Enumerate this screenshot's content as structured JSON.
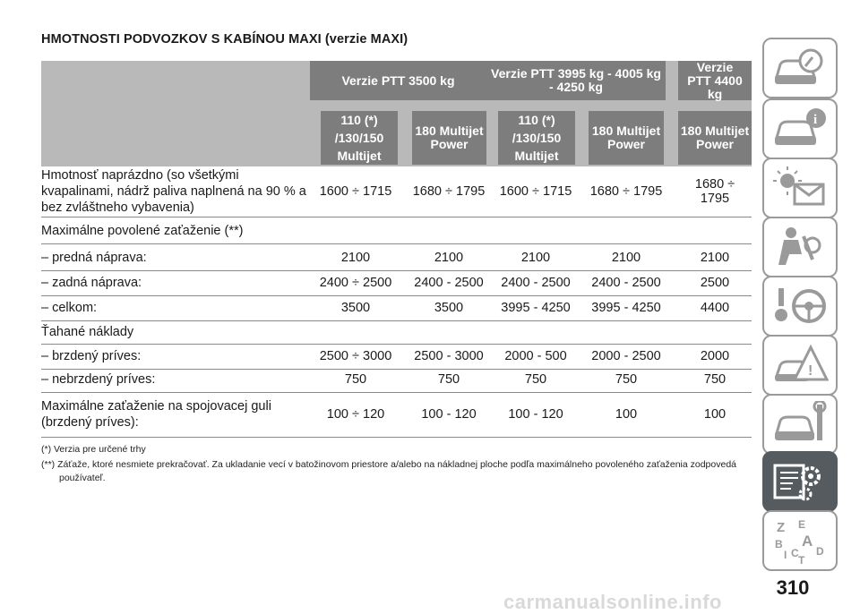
{
  "title": "HMOTNOSTI PODVOZKOV S KABÍNOU MAXI (verzie MAXI)",
  "header": {
    "groups": [
      "Verzie PTT 3500 kg",
      "Verzie PTT 3995 kg - 4005 kg - 4250 kg",
      "Verzie PTT 4400 kg"
    ],
    "engines": [
      "110 (*) /130/150 Multijet",
      "180 Multijet Power",
      "110 (*) /130/150 Multijet",
      "180 Multijet Power",
      "180 Multijet Power"
    ]
  },
  "rows": [
    {
      "label": "Hmotnosť naprázdno (so všetkými kvapalinami, nádrž paliva naplnená na 90 % a bez zvláštneho vybavenia)",
      "values": [
        "1600 ÷ 1715",
        "1680 ÷ 1795",
        "1600 ÷ 1715",
        "1680 ÷ 1795",
        "1680 ÷ 1795"
      ]
    },
    {
      "label": "Maximálne povolené zaťaženie (**)",
      "values": [
        "",
        "",
        "",
        "",
        ""
      ]
    },
    {
      "label": "– predná náprava:",
      "values": [
        "2100",
        "2100",
        "2100",
        "2100",
        "2100"
      ]
    },
    {
      "label": "– zadná náprava:",
      "values": [
        "2400 ÷ 2500",
        "2400 - 2500",
        "2400 - 2500",
        "2400 - 2500",
        "2500"
      ]
    },
    {
      "label": "– celkom:",
      "values": [
        "3500",
        "3500",
        "3995 - 4250",
        "3995 - 4250",
        "4400"
      ]
    },
    {
      "label": "Ťahané náklady",
      "values": [
        "",
        "",
        "",
        "",
        ""
      ]
    },
    {
      "label": "– brzdený príves:",
      "values": [
        "2500 ÷ 3000",
        "2500 - 3000",
        "2000 - 500",
        "2000 - 2500",
        "2000"
      ]
    },
    {
      "label": "– nebrzdený príves:",
      "values": [
        "750",
        "750",
        "750",
        "750",
        "750"
      ]
    },
    {
      "label": "Maximálne zaťaženie na spojovacej guli (brzdený príves):",
      "values": [
        "100 ÷ 120",
        "100 - 120",
        "100 - 120",
        "100",
        "100"
      ]
    }
  ],
  "footnotes": [
    "(*) Verzia pre určené trhy",
    "(**) Záťaže, ktoré nesmiete prekračovať. Za ukladanie vecí v batožinovom priestore a/alebo na nákladnej ploche podľa maximálneho povoleného zaťaženia zodpovedá používateľ."
  ],
  "sidebar_tabs": [
    {
      "icon": "car-dashboard-icon"
    },
    {
      "icon": "car-info-icon"
    },
    {
      "icon": "warning-lights-icon"
    },
    {
      "icon": "airbag-seat-icon"
    },
    {
      "icon": "steering-wheel-key-icon"
    },
    {
      "icon": "warning-triangle-car-icon"
    },
    {
      "icon": "car-wrench-icon"
    },
    {
      "icon": "specs-gears-icon",
      "active": true
    },
    {
      "icon": "alphabet-index-icon"
    }
  ],
  "page_number": "310",
  "watermark": "carmanualsonline.info"
}
